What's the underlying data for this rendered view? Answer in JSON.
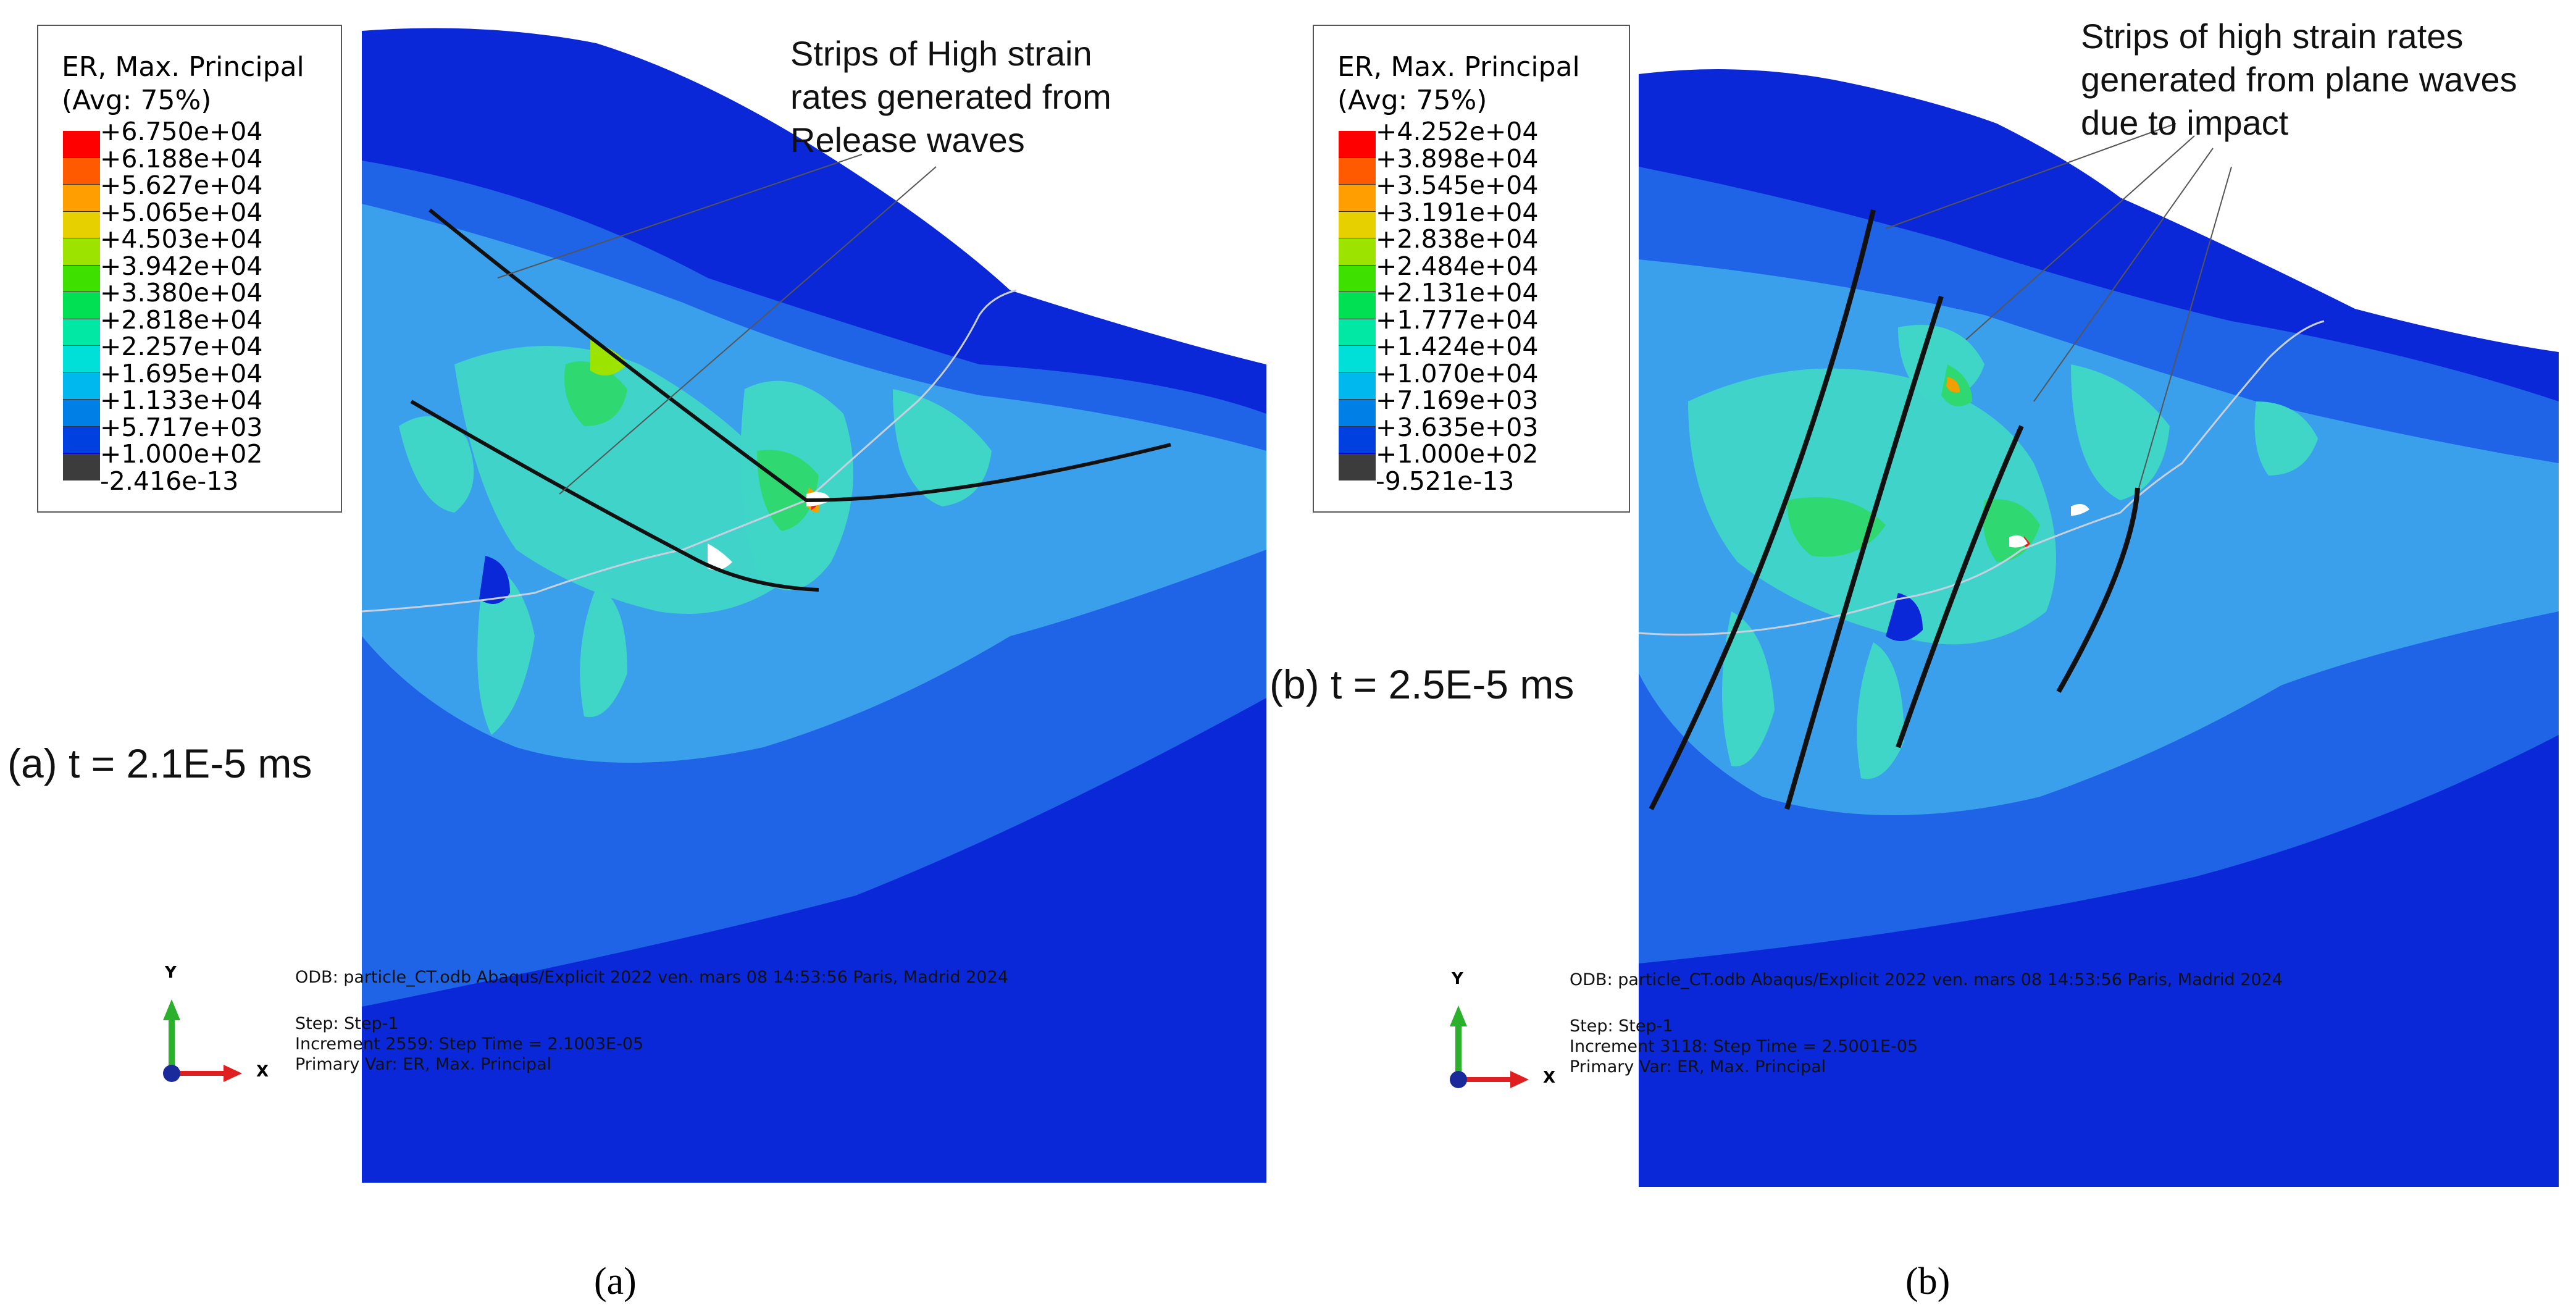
{
  "panels": [
    {
      "id": "a",
      "legend_title": "ER, Max. Principal\n(Avg: 75%)",
      "legend_values": [
        "+6.750e+04",
        "+6.188e+04",
        "+5.627e+04",
        "+5.065e+04",
        "+4.503e+04",
        "+3.942e+04",
        "+3.380e+04",
        "+2.818e+04",
        "+2.257e+04",
        "+1.695e+04",
        "+1.133e+04",
        "+5.717e+03",
        "+1.000e+02",
        "-2.416e-13"
      ],
      "annotation": [
        "Strips of High strain",
        "rates generated from",
        "Release waves"
      ],
      "time_label": "(a) t = 2.1E-5 ms",
      "info": [
        "ODB: particle_CT.odb    Abaqus/Explicit 2022    ven. mars 08 14:53:56 Paris, Madrid 2024",
        "Step: Step-1",
        "Increment      2559: Step Time =    2.1003E-05",
        "Primary Var: ER, Max. Principal"
      ],
      "caption": "(a)"
    },
    {
      "id": "b",
      "legend_title": "ER, Max. Principal\n(Avg: 75%)",
      "legend_values": [
        "+4.252e+04",
        "+3.898e+04",
        "+3.545e+04",
        "+3.191e+04",
        "+2.838e+04",
        "+2.484e+04",
        "+2.131e+04",
        "+1.777e+04",
        "+1.424e+04",
        "+1.070e+04",
        "+7.169e+03",
        "+3.635e+03",
        "+1.000e+02",
        "-9.521e-13"
      ],
      "annotation": [
        "Strips of high strain rates",
        "generated from plane waves",
        "due to impact"
      ],
      "time_label": "(b) t = 2.5E-5 ms",
      "info": [
        "ODB: particle_CT.odb    Abaqus/Explicit 2022    ven. mars 08 14:53:56 Paris, Madrid 2024",
        "Step: Step-1",
        "Increment      3118: Step Time =    2.5001E-05",
        "Primary Var: ER, Max. Principal"
      ],
      "caption": "(b)"
    }
  ],
  "axis_labels": {
    "y": "Y",
    "x": "X"
  },
  "legend_colors": [
    "#ff0000",
    "#ff5a00",
    "#ff9e00",
    "#e6d000",
    "#9ce400",
    "#3ee000",
    "#00e052",
    "#00e8a4",
    "#00e0d8",
    "#00b8ee",
    "#0080e6",
    "#0040e0",
    "#0000d8",
    "#3c3c3c"
  ],
  "field_colors": {
    "dark_blue": "#0b28d8",
    "mid_blue": "#1f63e6",
    "light_blue": "#3aa0ec",
    "cyan": "#3fd6c8",
    "green": "#30d872",
    "orange": "#f2a000",
    "red": "#e82020"
  }
}
